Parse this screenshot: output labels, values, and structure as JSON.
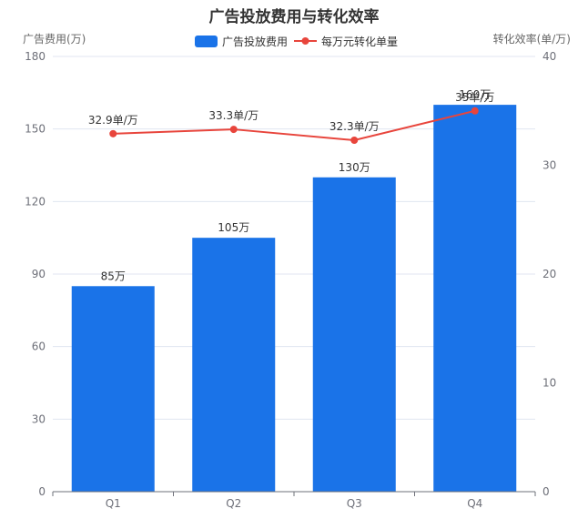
{
  "chart_data": {
    "type": "bar",
    "title": "广告投放费用与转化效率",
    "categories": [
      "Q1",
      "Q2",
      "Q3",
      "Q4"
    ],
    "y_left": {
      "label": "广告费用(万)",
      "min": 0,
      "max": 180,
      "ticks": [
        0,
        30,
        60,
        90,
        120,
        150,
        180
      ]
    },
    "y_right": {
      "label": "转化效率(单/万)",
      "min": 0,
      "max": 40,
      "ticks": [
        0,
        10,
        20,
        30,
        40
      ]
    },
    "series": [
      {
        "name": "广告投放费用",
        "type": "bar",
        "axis": "left",
        "color": "#1a73e8",
        "values": [
          85,
          105,
          130,
          160
        ],
        "labels": [
          "85万",
          "105万",
          "130万",
          "160万"
        ]
      },
      {
        "name": "每万元转化单量",
        "type": "line",
        "axis": "right",
        "color": "#e8453c",
        "values": [
          32.9,
          33.3,
          32.3,
          35.0
        ],
        "labels": [
          "32.9单/万",
          "33.3单/万",
          "32.3单/万",
          "35单/万"
        ]
      }
    ],
    "legend_position": "top-center",
    "grid": true
  }
}
